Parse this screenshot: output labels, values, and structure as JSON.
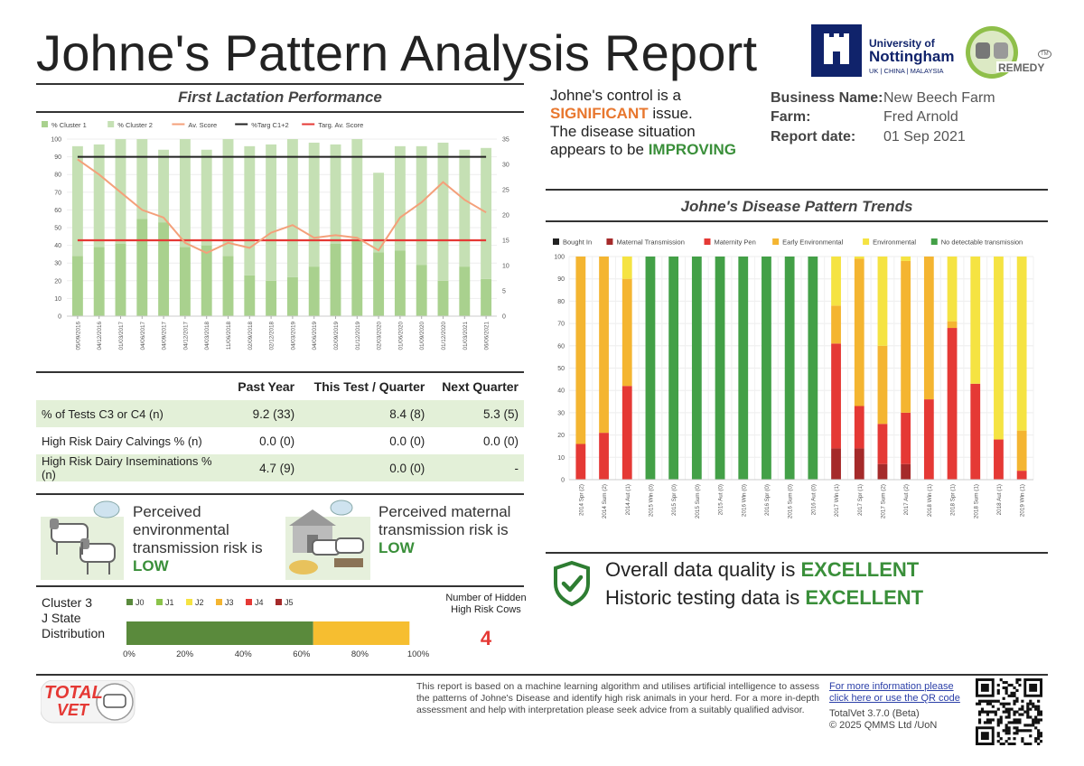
{
  "header": {
    "title": "Johne's Pattern Analysis Report",
    "uni_line1": "University of",
    "uni_line2": "Nottingham",
    "uni_line3": "UK | CHINA | MALAYSIA",
    "remedy_logo": "REMEDY",
    "tm_mark": "TM"
  },
  "summary": {
    "line1_pre": "Johne's control is a",
    "severity": "SIGNIFICANT",
    "line2_post": " issue.",
    "line3": "The disease situation",
    "line4_pre": "appears to be ",
    "trend": "IMPROVING",
    "colors": {
      "severity": "#e8772e",
      "trend": "#3a8f3a"
    }
  },
  "business": {
    "name_label": "Business Name:",
    "name_value": "New Beech Farm",
    "farm_label": "Farm:",
    "farm_value": "Fred Arnold",
    "date_label": "Report date:",
    "date_value": "01 Sep 2021"
  },
  "first_lactation": {
    "title": "First Lactation Performance",
    "legend": [
      "% Cluster 1",
      "% Cluster 2",
      "Av. Score",
      "%Targ C1+2",
      "Targ. Av. Score"
    ],
    "y_left_ticks": [
      "0",
      "10",
      "20",
      "30",
      "40",
      "50",
      "60",
      "70",
      "80",
      "90",
      "100"
    ],
    "y_right_ticks": [
      "0",
      "5",
      "10",
      "15",
      "20",
      "25",
      "30",
      "35"
    ]
  },
  "stats_table": {
    "headers": [
      "Past Year",
      "This Test / Quarter",
      "Next Quarter"
    ],
    "rows": [
      {
        "label": "% of Tests C3 or C4 (n)",
        "past": "9.2 (33)",
        "this": "8.4 (8)",
        "next": "5.3 (5)"
      },
      {
        "label": "High Risk Dairy Calvings % (n)",
        "past": "0.0 (0)",
        "this": "0.0 (0)",
        "next": "0.0 (0)"
      },
      {
        "label": "High Risk Dairy Inseminations % (n)",
        "past": "4.7 (9)",
        "this": "0.0 (0)",
        "next": "-"
      }
    ]
  },
  "risk": {
    "env_l1": "Perceived",
    "env_l2": "environmental",
    "env_l3": "transmission risk is",
    "env_level": "LOW",
    "mat_l1": "Perceived maternal",
    "mat_l2": "transmission risk is",
    "mat_level": "LOW"
  },
  "cluster3": {
    "l1": "Cluster 3",
    "l2": "J State",
    "l3": "Distribution",
    "legend": [
      "J0",
      "J1",
      "J2",
      "J3",
      "J4",
      "J5"
    ],
    "legend_colors": [
      "#5a8a3c",
      "#8bc34a",
      "#f5e342",
      "#f4b531",
      "#e53935",
      "#a52a2a"
    ],
    "values": {
      "J0": 64,
      "J3": 33
    },
    "ticks": [
      "0%",
      "20%",
      "40%",
      "60%",
      "80%",
      "100%"
    ],
    "hidden_label1": "Number of Hidden",
    "hidden_label2": "High Risk Cows",
    "hidden_value": "4"
  },
  "pattern_trends": {
    "title": "Johne's Disease Pattern Trends",
    "legend": [
      "Bought In",
      "Maternal Transmission",
      "Maternity Pen",
      "Early Environmental",
      "Environmental",
      "No detectable transmission"
    ],
    "y_ticks": [
      "0",
      "10",
      "20",
      "30",
      "40",
      "50",
      "60",
      "70",
      "80",
      "90",
      "100"
    ]
  },
  "data_quality": {
    "l1_pre": "Overall data quality is ",
    "l1_val": "EXCELLENT",
    "l2_pre": "Historic testing data is ",
    "l2_val": "EXCELLENT"
  },
  "footer": {
    "totalvet_logo_1": "TOTAL",
    "totalvet_logo_2": "VET",
    "disclaimer": "This report is based on a machine learning algorithm and utilises artificial intelligence to assess the patterns of Johne's Disease and identify high risk animals in your herd. For a more in-depth assessment and help with interpretation please seek advice from a suitably qualified advisor.",
    "link_l1": "For more information please",
    "link_l2": "click here or use the QR code",
    "version": "TotalVet 3.7.0 (Beta)",
    "copyright": "© 2025 QMMS Ltd /UoN"
  },
  "chart_data": [
    {
      "type": "bar",
      "title": "First Lactation Performance",
      "categories": [
        "05/09/2016",
        "04/12/2016",
        "01/03/2017",
        "04/06/2017",
        "04/09/2017",
        "04/12/2017",
        "04/03/2018",
        "11/06/2018",
        "02/09/2018",
        "02/12/2018",
        "04/03/2019",
        "04/06/2019",
        "02/09/2019",
        "01/12/2019",
        "02/03/2020",
        "01/06/2020",
        "01/09/2020",
        "01/12/2020",
        "01/03/2021",
        "06/06/2021"
      ],
      "series": [
        {
          "name": "% Cluster 1",
          "values": [
            34,
            39,
            41,
            55,
            53,
            39,
            40,
            34,
            23,
            20,
            22,
            28,
            41,
            43,
            36,
            37,
            29,
            20,
            28,
            21
          ]
        },
        {
          "name": "% Cluster 2",
          "values": [
            62,
            58,
            59,
            45,
            41,
            61,
            54,
            66,
            73,
            77,
            78,
            70,
            56,
            57,
            45,
            59,
            67,
            78,
            66,
            74
          ]
        },
        {
          "name": "Av. Score",
          "axis": "right",
          "values": [
            31,
            28,
            24.5,
            21,
            19.5,
            14.5,
            12.5,
            14.5,
            13.5,
            16.5,
            18,
            15.5,
            16,
            15.5,
            13,
            19.5,
            22.5,
            26.5,
            23,
            20.5
          ]
        },
        {
          "name": "%Targ C1+2",
          "values": [
            90,
            90,
            90,
            90,
            90,
            90,
            90,
            90,
            90,
            90,
            90,
            90,
            90,
            90,
            90,
            90,
            90,
            90,
            90,
            90
          ]
        },
        {
          "name": "Targ. Av. Score",
          "axis": "right",
          "values": [
            15,
            15,
            15,
            15,
            15,
            15,
            15,
            15,
            15,
            15,
            15,
            15,
            15,
            15,
            15,
            15,
            15,
            15,
            15,
            15
          ]
        }
      ],
      "ylim": [
        0,
        100
      ],
      "ylim_right": [
        0,
        35
      ],
      "colors": {
        "% Cluster 1": "#a9d18e",
        "% Cluster 2": "#c5e0b4",
        "Av. Score": "#f4a07a",
        "%Targ C1+2": "#222222",
        "Targ. Av. Score": "#e53935"
      }
    },
    {
      "type": "bar",
      "stacked": true,
      "title": "Johne's Disease Pattern Trends",
      "categories": [
        "2014 Spr (2)",
        "2014 Sum (2)",
        "2014 Aut (1)",
        "2015 Win (0)",
        "2015 Spr (0)",
        "2015 Sum (0)",
        "2015 Aut (0)",
        "2016 Win (0)",
        "2016 Spr (0)",
        "2016 Sum (0)",
        "2016 Aut (0)",
        "2017 Win (1)",
        "2017 Spr (1)",
        "2017 Sum (2)",
        "2017 Aut (2)",
        "2018 Win (1)",
        "2018 Spr (1)",
        "2018 Sum (1)",
        "2018 Aut (1)",
        "2019 Win (1)"
      ],
      "series": [
        {
          "name": "Bought In",
          "values": [
            0,
            0,
            0,
            0,
            0,
            0,
            0,
            0,
            0,
            0,
            0,
            0,
            0,
            0,
            0,
            0,
            0,
            0,
            0,
            0
          ]
        },
        {
          "name": "Maternal Transmission",
          "values": [
            0,
            0,
            0,
            0,
            0,
            0,
            0,
            0,
            0,
            0,
            0,
            14,
            14,
            7,
            7,
            0,
            0,
            0,
            0,
            0
          ]
        },
        {
          "name": "Maternity Pen",
          "values": [
            16,
            21,
            42,
            0,
            0,
            0,
            0,
            0,
            0,
            0,
            0,
            47,
            19,
            18,
            23,
            36,
            68,
            43,
            18,
            4
          ]
        },
        {
          "name": "Early Environmental",
          "values": [
            84,
            79,
            48,
            0,
            0,
            0,
            0,
            0,
            0,
            0,
            0,
            17,
            66,
            35,
            68,
            64,
            3,
            0,
            0,
            18
          ]
        },
        {
          "name": "Environmental",
          "values": [
            0,
            0,
            10,
            0,
            0,
            0,
            0,
            0,
            0,
            0,
            0,
            22,
            1,
            40,
            2,
            0,
            29,
            57,
            82,
            78
          ]
        },
        {
          "name": "No detectable transmission",
          "values": [
            0,
            0,
            0,
            100,
            100,
            100,
            100,
            100,
            100,
            100,
            100,
            0,
            0,
            0,
            0,
            0,
            0,
            0,
            0,
            0
          ]
        }
      ],
      "ylim": [
        0,
        100
      ],
      "colors": {
        "Bought In": "#222222",
        "Maternal Transmission": "#a52a2a",
        "Maternity Pen": "#e53935",
        "Early Environmental": "#f4b531",
        "Environmental": "#f5e342",
        "No detectable transmission": "#43a047"
      }
    },
    {
      "type": "bar",
      "stacked": true,
      "orientation": "horizontal",
      "title": "Cluster 3 J State Distribution",
      "categories": [
        "J0",
        "J1",
        "J2",
        "J3",
        "J4",
        "J5"
      ],
      "values": [
        64,
        0,
        0,
        33,
        0,
        0
      ],
      "xlim": [
        0,
        100
      ]
    }
  ]
}
